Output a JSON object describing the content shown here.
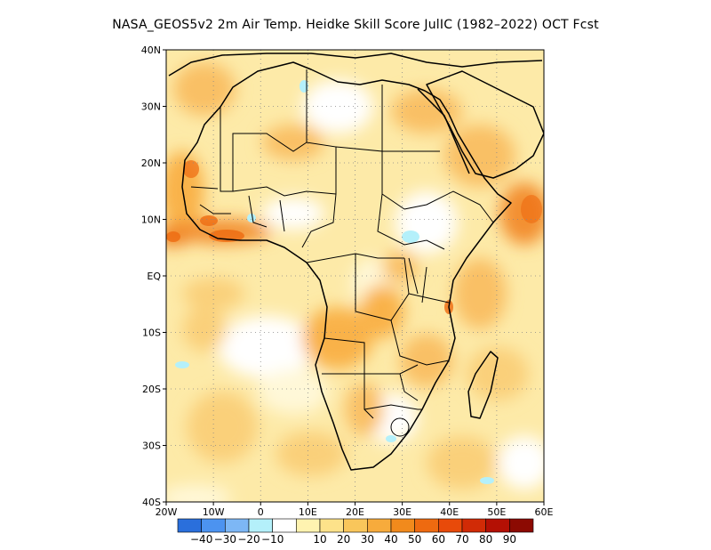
{
  "title": "NASA_GEOS5v2  2m Air Temp. Heidke Skill Score JulIC (1982–2022) OCT Fcst",
  "map": {
    "lon_range": [
      -20,
      60
    ],
    "lat_range": [
      -40,
      40
    ],
    "lat_ticks": [
      {
        "lat": 40,
        "label": "40N"
      },
      {
        "lat": 30,
        "label": "30N"
      },
      {
        "lat": 20,
        "label": "20N"
      },
      {
        "lat": 10,
        "label": "10N"
      },
      {
        "lat": 0,
        "label": "EQ"
      },
      {
        "lat": -10,
        "label": "10S"
      },
      {
        "lat": -20,
        "label": "20S"
      },
      {
        "lat": -30,
        "label": "30S"
      },
      {
        "lat": -40,
        "label": "40S"
      }
    ],
    "lon_ticks": [
      {
        "lon": -20,
        "label": "20W"
      },
      {
        "lon": -10,
        "label": "10W"
      },
      {
        "lon": 0,
        "label": "0"
      },
      {
        "lon": 10,
        "label": "10E"
      },
      {
        "lon": 20,
        "label": "20E"
      },
      {
        "lon": 30,
        "label": "30E"
      },
      {
        "lon": 40,
        "label": "40E"
      },
      {
        "lon": 50,
        "label": "50E"
      },
      {
        "lon": 60,
        "label": "60E"
      }
    ],
    "grid": "dotted"
  },
  "colorbar": {
    "colors": [
      "#2a6fdc",
      "#4c93f0",
      "#7db7f5",
      "#b4f0fa",
      "#ffffff",
      "#fff3b0",
      "#fde28a",
      "#f9c65b",
      "#f7ab3c",
      "#f18a1c",
      "#ee6a10",
      "#e84a0a",
      "#d12b06",
      "#b41004",
      "#8c0a02"
    ],
    "labels": [
      "-40",
      "-30",
      "-20",
      "-10",
      "10",
      "20",
      "30",
      "40",
      "50",
      "60",
      "70",
      "80",
      "90"
    ]
  },
  "chart_data": {
    "type": "heatmap",
    "title": "NASA_GEOS5v2  2m Air Temp. Heidke Skill Score JulIC (1982–2022) OCT Fcst",
    "variable": "Heidke Skill Score",
    "x_range": [
      -20,
      60
    ],
    "y_range": [
      -40,
      40
    ],
    "levels": [
      -40,
      -30,
      -20,
      -10,
      10,
      20,
      30,
      40,
      50,
      60,
      70,
      80,
      90
    ],
    "regions": [
      {
        "lon": -15,
        "lat": 10,
        "score": 50
      },
      {
        "lon": -5,
        "lat": 7,
        "score": 55
      },
      {
        "lon": 45,
        "lat": 10,
        "score": 50
      },
      {
        "lon": 55,
        "lat": 12,
        "score": 45
      },
      {
        "lon": 35,
        "lat": 20,
        "score": 35
      },
      {
        "lon": 15,
        "lat": -12,
        "score": 40
      },
      {
        "lon": 28,
        "lat": -20,
        "score": 30
      },
      {
        "lon": 5,
        "lat": -15,
        "score": 15
      },
      {
        "lon": 30,
        "lat": 10,
        "score": 5
      },
      {
        "lon": 25,
        "lat": -27,
        "score": 5
      },
      {
        "lon": 55,
        "lat": -28,
        "score": 5
      },
      {
        "lon": 10,
        "lat": 25,
        "score": 20
      }
    ]
  }
}
